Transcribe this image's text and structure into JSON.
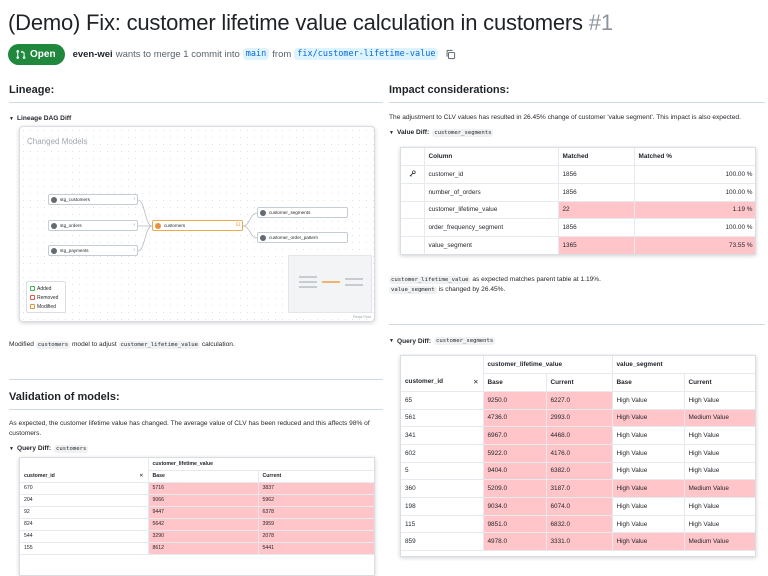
{
  "pr": {
    "title": "(Demo) Fix: customer lifetime value calculation in customers",
    "number": "#1",
    "state": "Open",
    "author": "even-wei",
    "merge_text": "wants to merge 1 commit into",
    "base_branch": "main",
    "from_text": "from",
    "head_branch": "fix/customer-lifetime-value"
  },
  "lineage": {
    "heading": "Lineage:",
    "details": "Lineage DAG Diff",
    "card_title": "Changed Models",
    "nodes": {
      "stg_customers": "stg_customers",
      "stg_orders": "stg_orders",
      "stg_payments": "stg_payments",
      "customers": "customers",
      "customer_segments": "customer_segments",
      "customer_order_pattern": "customer_order_pattern"
    },
    "legend": {
      "added": "Added",
      "removed": "Removed",
      "modified": "Modified"
    },
    "attribution": "React Flow",
    "note_prefix": "Modified",
    "note_model": "customers",
    "note_mid": "model to adjust",
    "note_col": "customer_lifetime_value",
    "note_suffix": "calculation."
  },
  "validation": {
    "heading": "Validation of models:",
    "text": "As expected, the customer lifetime value has changed. The average value of CLV has been reduced and this affects 98% of customers.",
    "details": "Query Diff:",
    "details_code": "customers",
    "table": {
      "group": "customer_lifetime_value",
      "key": "customer_id",
      "base": "Base",
      "current": "Current",
      "rows": [
        [
          "670",
          "5716",
          "3837"
        ],
        [
          "204",
          "9066",
          "5962"
        ],
        [
          "92",
          "9447",
          "6378"
        ],
        [
          "824",
          "5642",
          "3959"
        ],
        [
          "544",
          "3290",
          "2078"
        ],
        [
          "155",
          "8612",
          "5441"
        ]
      ]
    }
  },
  "impact": {
    "heading": "Impact considerations:",
    "text": "The adjustment to CLV values has resulted in 26.45% change of customer 'value segment'. This impact is also expected.",
    "value_diff_label": "Value Diff:",
    "value_diff_code": "customer_segments",
    "value_table": {
      "headers": [
        "Column",
        "Matched",
        "Matched %"
      ],
      "rows": [
        {
          "name": "customer_id",
          "matched": "1856",
          "pct": "100.00 %",
          "key": true,
          "diff": false
        },
        {
          "name": "number_of_orders",
          "matched": "1856",
          "pct": "100.00 %",
          "key": false,
          "diff": false
        },
        {
          "name": "customer_lifetime_value",
          "matched": "22",
          "pct": "1.19 %",
          "key": false,
          "diff": true
        },
        {
          "name": "order_frequency_segment",
          "matched": "1856",
          "pct": "100.00 %",
          "key": false,
          "diff": false
        },
        {
          "name": "value_segment",
          "matched": "1365",
          "pct": "73.55 %",
          "key": false,
          "diff": true
        }
      ]
    },
    "note1_code": "customer_lifetime_value",
    "note1": "as expected matches parent table at 1.19%.",
    "note2_code": "value_segment",
    "note2": "is changed by 26.45%.",
    "query_label": "Query Diff:",
    "query_code": "customer_segments",
    "query_table": {
      "group1": "customer_lifetime_value",
      "group2": "value_segment",
      "key": "customer_id",
      "base": "Base",
      "current": "Current",
      "rows": [
        [
          "65",
          "9250.0",
          "6227.0",
          "High Value",
          "High Value"
        ],
        [
          "561",
          "4736.0",
          "2993.0",
          "High Value",
          "Medium Value"
        ],
        [
          "341",
          "6967.0",
          "4468.0",
          "High Value",
          "High Value"
        ],
        [
          "602",
          "5922.0",
          "4176.0",
          "High Value",
          "High Value"
        ],
        [
          "5",
          "9404.0",
          "6382.0",
          "High Value",
          "High Value"
        ],
        [
          "360",
          "5209.0",
          "3187.0",
          "High Value",
          "Medium Value"
        ],
        [
          "198",
          "9034.0",
          "6074.0",
          "High Value",
          "High Value"
        ],
        [
          "115",
          "9851.0",
          "6832.0",
          "High Value",
          "High Value"
        ],
        [
          "859",
          "4978.0",
          "3331.0",
          "High Value",
          "Medium Value"
        ]
      ]
    }
  },
  "colors": {
    "open_green": "#1f883d",
    "diff_bg": "#ffc5c9",
    "link_blue": "#0969da",
    "modified_orange": "#e8933c"
  }
}
